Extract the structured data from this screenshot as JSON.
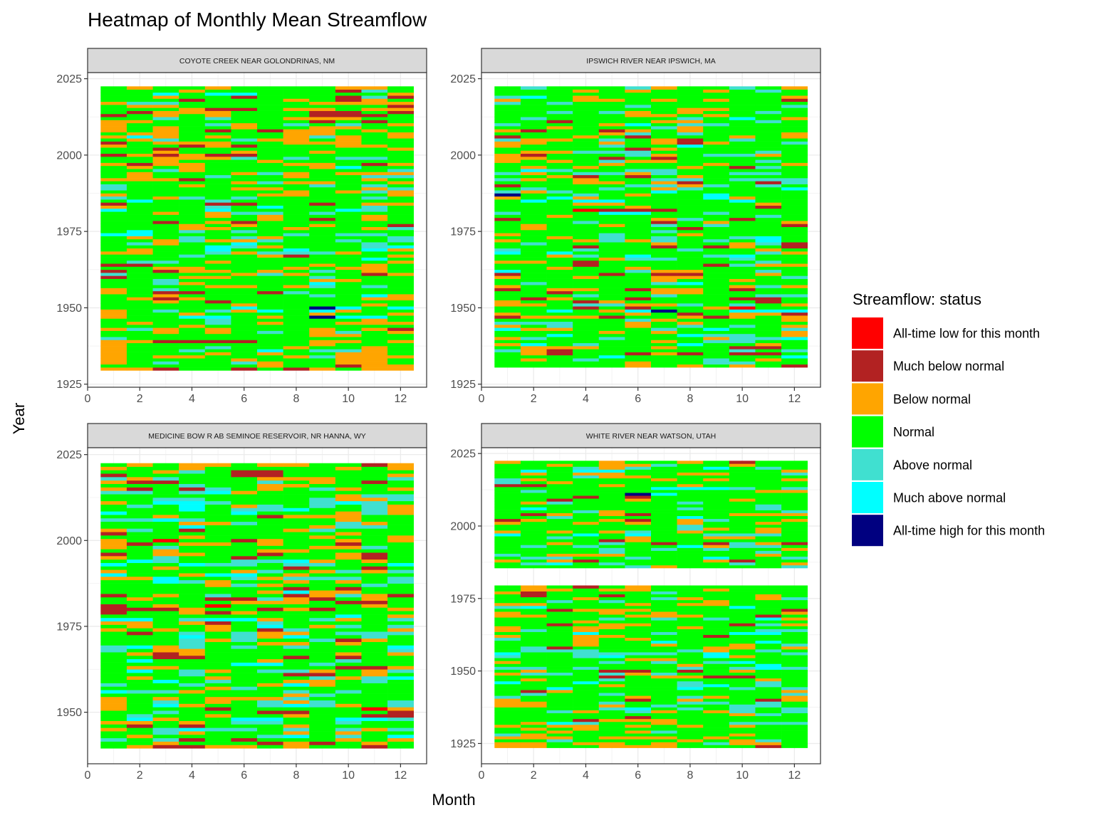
{
  "chart_data": {
    "type": "heatmap",
    "title": "Heatmap of Monthly Mean Streamflow",
    "xlabel": "Month",
    "ylabel": "Year",
    "x_ticks": [
      0,
      2,
      4,
      6,
      8,
      10,
      12
    ],
    "legend": {
      "title": "Streamflow: status",
      "placement": "right",
      "entries": [
        {
          "label": "All-time low for this month",
          "color": "#ff0000"
        },
        {
          "label": "Much below normal",
          "color": "#b22222"
        },
        {
          "label": "Below normal",
          "color": "#ffa500"
        },
        {
          "label": "Normal",
          "color": "#00ff00"
        },
        {
          "label": "Above normal",
          "color": "#40e0d0"
        },
        {
          "label": "Much above normal",
          "color": "#00ffff"
        },
        {
          "label": "All-time high for this month",
          "color": "#000080"
        }
      ]
    },
    "panels": [
      {
        "name": "COYOTE CREEK NEAR GOLONDRINAS, NM",
        "x_range": [
          0,
          13
        ],
        "y_range": [
          1924,
          2027
        ],
        "y_ticks": [
          1925,
          1950,
          1975,
          2000,
          2025
        ],
        "year_start": 1930,
        "year_end": 2022,
        "gaps": [],
        "seed": 11,
        "weights": [
          0.03,
          0.13,
          0.2,
          0.42,
          0.11,
          0.09,
          0.02
        ]
      },
      {
        "name": "IPSWICH RIVER NEAR IPSWICH, MA",
        "x_range": [
          0,
          13
        ],
        "y_range": [
          1924,
          2027
        ],
        "y_ticks": [
          1925,
          1950,
          1975,
          2000,
          2025
        ],
        "year_start": 1931,
        "year_end": 2022,
        "gaps": [],
        "seed": 23,
        "weights": [
          0.03,
          0.12,
          0.16,
          0.44,
          0.13,
          0.1,
          0.02
        ]
      },
      {
        "name": "MEDICINE BOW R AB SEMINOE RESERVOIR, NR HANNA, WY",
        "x_range": [
          0,
          13
        ],
        "y_range": [
          1935,
          2027
        ],
        "y_ticks": [
          1950,
          1975,
          2000,
          2025
        ],
        "year_start": 1940,
        "year_end": 2022,
        "gaps": [],
        "seed": 37,
        "weights": [
          0.04,
          0.13,
          0.16,
          0.38,
          0.14,
          0.13,
          0.02
        ]
      },
      {
        "name": "WHITE RIVER NEAR WATSON, UTAH",
        "x_range": [
          0,
          13
        ],
        "y_range": [
          1918,
          2027
        ],
        "y_ticks": [
          1925,
          1950,
          1975,
          2000,
          2025
        ],
        "year_start": 1924,
        "year_end": 2022,
        "gaps": [
          [
            1980,
            1985
          ]
        ],
        "seed": 53,
        "weights": [
          0.02,
          0.11,
          0.15,
          0.46,
          0.13,
          0.11,
          0.02
        ]
      }
    ]
  }
}
